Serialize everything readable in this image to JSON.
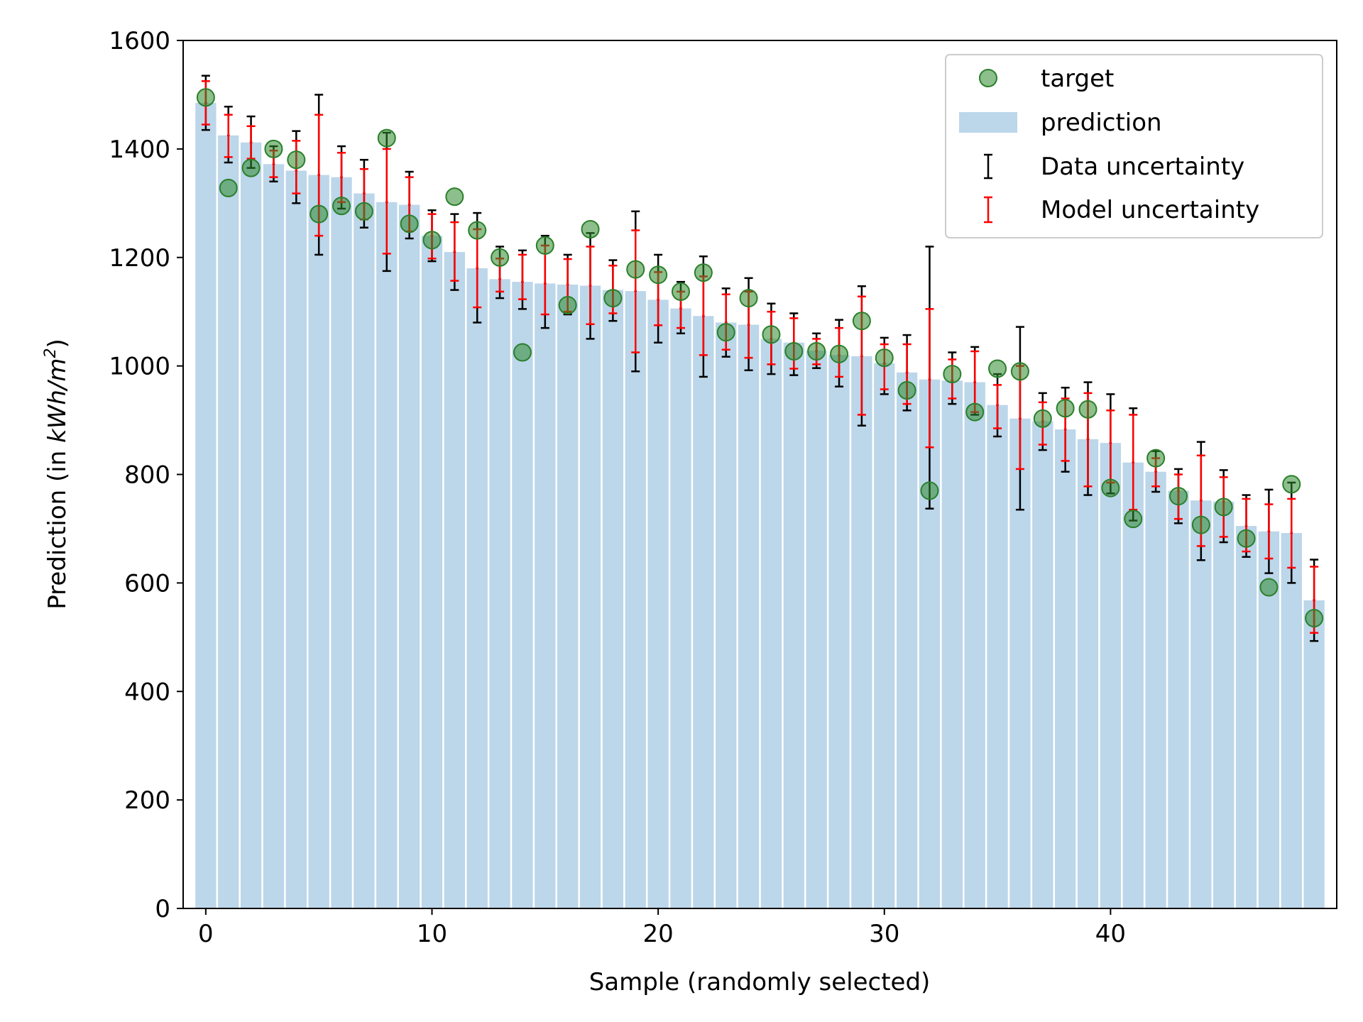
{
  "chart_data": {
    "type": "bar",
    "xlabel": "Sample (randomly selected)",
    "ylabel_parts": [
      "Prediction (in ",
      "kWh/m",
      "2",
      ")"
    ],
    "xlim": [
      -1,
      50
    ],
    "ylim": [
      0,
      1600
    ],
    "xticks": [
      0,
      10,
      20,
      30,
      40
    ],
    "yticks": [
      0,
      200,
      400,
      600,
      800,
      1000,
      1200,
      1400,
      1600
    ],
    "grid": false,
    "legend_position": "top-right",
    "legend": [
      {
        "label": "target",
        "kind": "marker"
      },
      {
        "label": "prediction",
        "kind": "bar"
      },
      {
        "label": "Data uncertainty",
        "kind": "errorbar-black"
      },
      {
        "label": "Model uncertainty",
        "kind": "errorbar-red"
      }
    ],
    "colors": {
      "bar": "#bcd6ea",
      "target_fill": "#2e8b2e",
      "target_edge": "#2a7f2a",
      "data_uncertainty": "#000000",
      "model_uncertainty": "#ff0000"
    },
    "x": [
      0,
      1,
      2,
      3,
      4,
      5,
      6,
      7,
      8,
      9,
      10,
      11,
      12,
      13,
      14,
      15,
      16,
      17,
      18,
      19,
      20,
      21,
      22,
      23,
      24,
      25,
      26,
      27,
      28,
      29,
      30,
      31,
      32,
      33,
      34,
      35,
      36,
      37,
      38,
      39,
      40,
      41,
      42,
      43,
      44,
      45,
      46,
      47,
      48,
      49
    ],
    "prediction": [
      1485,
      1425,
      1412,
      1372,
      1360,
      1352,
      1348,
      1318,
      1302,
      1297,
      1240,
      1210,
      1180,
      1160,
      1155,
      1152,
      1150,
      1148,
      1140,
      1138,
      1122,
      1106,
      1092,
      1080,
      1076,
      1050,
      1043,
      1028,
      1020,
      1018,
      1005,
      988,
      975,
      973,
      970,
      928,
      903,
      898,
      883,
      865,
      858,
      822,
      805,
      770,
      752,
      750,
      705,
      695,
      692,
      568
    ],
    "target": [
      1495,
      1328,
      1365,
      1400,
      1380,
      1280,
      1295,
      1285,
      1420,
      1262,
      1232,
      1312,
      1250,
      1200,
      1025,
      1222,
      1112,
      1252,
      1125,
      1178,
      1168,
      1137,
      1172,
      1062,
      1125,
      1058,
      1027,
      1027,
      1022,
      1083,
      1015,
      955,
      770,
      985,
      915,
      995,
      990,
      903,
      922,
      920,
      775,
      718,
      830,
      760,
      707,
      740,
      682,
      592,
      782,
      535
    ],
    "data_uncertainty": [
      [
        1435,
        1535
      ],
      [
        1375,
        1478
      ],
      [
        1365,
        1460
      ],
      [
        1340,
        1405
      ],
      [
        1300,
        1433
      ],
      [
        1205,
        1500
      ],
      [
        1290,
        1405
      ],
      [
        1255,
        1380
      ],
      [
        1175,
        1430
      ],
      [
        1235,
        1358
      ],
      [
        1193,
        1287
      ],
      [
        1140,
        1280
      ],
      [
        1080,
        1282
      ],
      [
        1125,
        1220
      ],
      [
        1105,
        1213
      ],
      [
        1070,
        1240
      ],
      [
        1095,
        1205
      ],
      [
        1050,
        1245
      ],
      [
        1083,
        1195
      ],
      [
        990,
        1285
      ],
      [
        1043,
        1205
      ],
      [
        1060,
        1155
      ],
      [
        980,
        1202
      ],
      [
        1017,
        1143
      ],
      [
        992,
        1162
      ],
      [
        985,
        1115
      ],
      [
        983,
        1097
      ],
      [
        996,
        1060
      ],
      [
        962,
        1085
      ],
      [
        890,
        1147
      ],
      [
        948,
        1052
      ],
      [
        918,
        1057
      ],
      [
        737,
        1220
      ],
      [
        930,
        1025
      ],
      [
        910,
        1035
      ],
      [
        870,
        985
      ],
      [
        735,
        1072
      ],
      [
        845,
        950
      ],
      [
        805,
        960
      ],
      [
        762,
        970
      ],
      [
        765,
        948
      ],
      [
        715,
        922
      ],
      [
        768,
        843
      ],
      [
        710,
        810
      ],
      [
        642,
        860
      ],
      [
        675,
        808
      ],
      [
        648,
        762
      ],
      [
        618,
        772
      ],
      [
        600,
        785
      ],
      [
        493,
        643
      ]
    ],
    "model_uncertainty": [
      [
        1445,
        1525
      ],
      [
        1385,
        1463
      ],
      [
        1382,
        1442
      ],
      [
        1348,
        1397
      ],
      [
        1318,
        1415
      ],
      [
        1240,
        1463
      ],
      [
        1302,
        1393
      ],
      [
        1270,
        1363
      ],
      [
        1207,
        1400
      ],
      [
        1248,
        1348
      ],
      [
        1198,
        1280
      ],
      [
        1157,
        1265
      ],
      [
        1108,
        1252
      ],
      [
        1137,
        1198
      ],
      [
        1123,
        1205
      ],
      [
        1095,
        1222
      ],
      [
        1100,
        1197
      ],
      [
        1077,
        1220
      ],
      [
        1097,
        1185
      ],
      [
        1025,
        1250
      ],
      [
        1075,
        1173
      ],
      [
        1070,
        1137
      ],
      [
        1020,
        1165
      ],
      [
        1030,
        1132
      ],
      [
        1015,
        1137
      ],
      [
        1003,
        1100
      ],
      [
        995,
        1088
      ],
      [
        1003,
        1050
      ],
      [
        980,
        1070
      ],
      [
        910,
        1128
      ],
      [
        957,
        1040
      ],
      [
        930,
        1040
      ],
      [
        850,
        1105
      ],
      [
        940,
        1012
      ],
      [
        915,
        1027
      ],
      [
        885,
        965
      ],
      [
        810,
        1000
      ],
      [
        855,
        933
      ],
      [
        825,
        940
      ],
      [
        778,
        950
      ],
      [
        785,
        918
      ],
      [
        735,
        910
      ],
      [
        778,
        830
      ],
      [
        718,
        800
      ],
      [
        668,
        835
      ],
      [
        685,
        795
      ],
      [
        658,
        755
      ],
      [
        645,
        745
      ],
      [
        628,
        755
      ],
      [
        508,
        630
      ]
    ]
  }
}
